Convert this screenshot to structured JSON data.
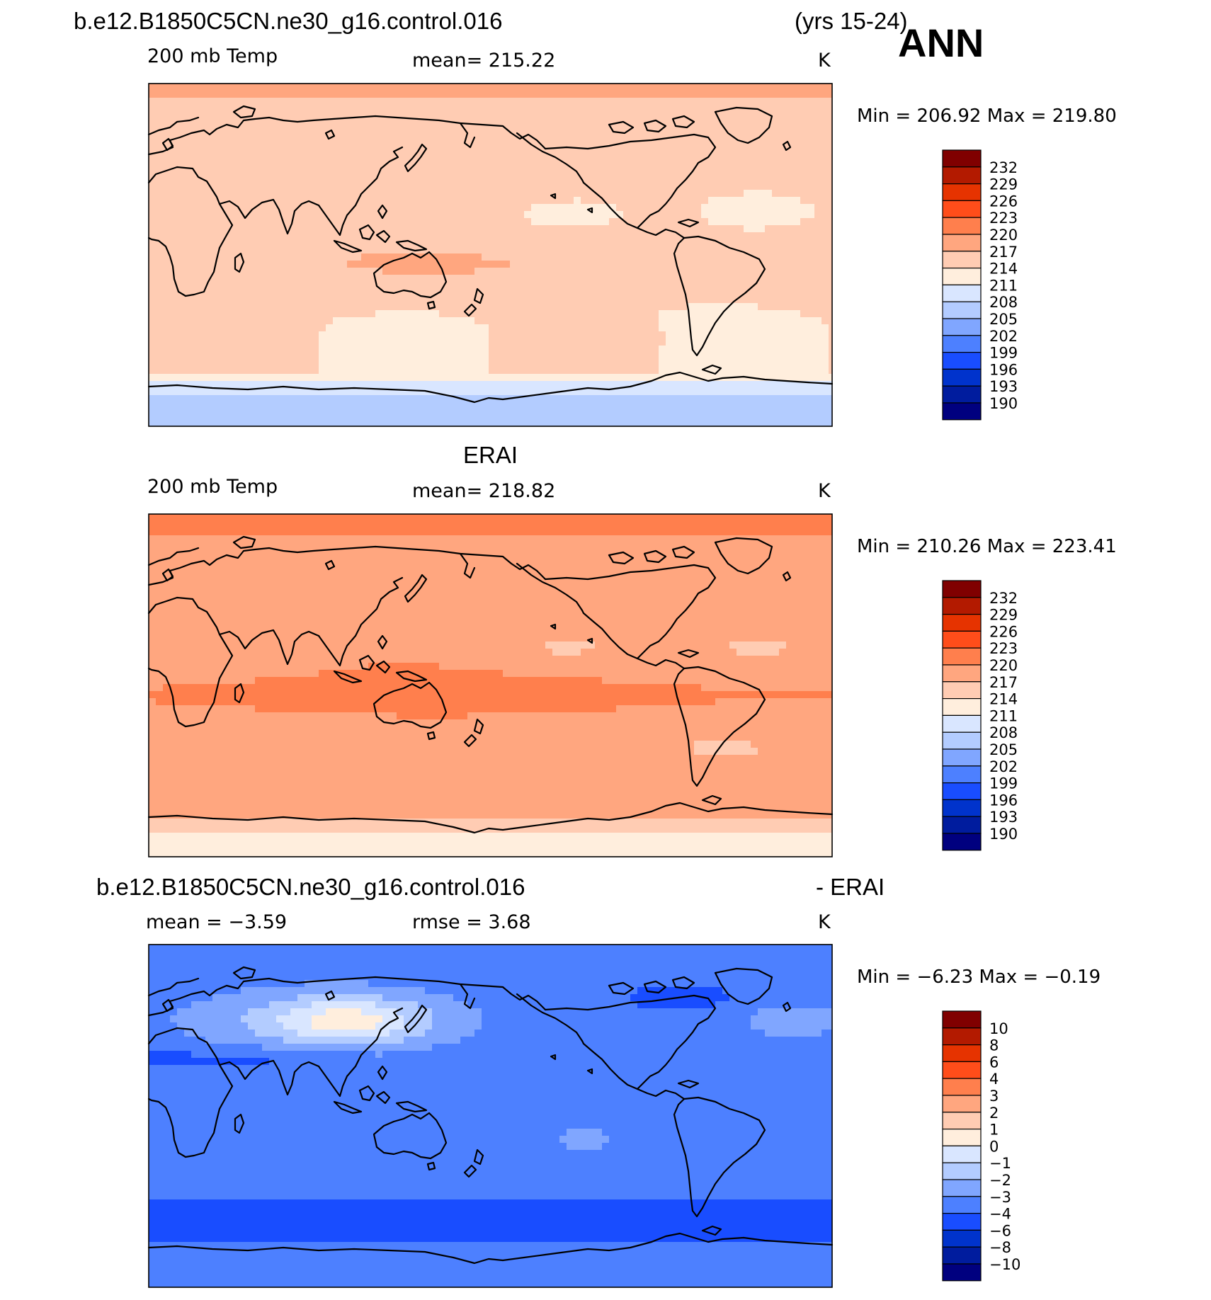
{
  "figure": {
    "case_name": "b.e12.B1850C5CN.ne30_g16.control.016",
    "years": "(yrs 15-24)",
    "season": "ANN"
  },
  "panels": [
    {
      "id": "model",
      "heading": "",
      "variable": "200 mb Temp",
      "stat_text": "mean=  215.22",
      "units": "K",
      "minmax": "Min  =  206.92  Max  =  219.80",
      "field": {
        "base": 214,
        "polar_n": 218,
        "south": 207,
        "south_lat": -62,
        "tropics": 216,
        "asia": 217,
        "eq_band_amp": 2,
        "pole_amp": 4
      },
      "colorbar": {
        "ticks": [
          "232",
          "229",
          "226",
          "223",
          "220",
          "217",
          "214",
          "211",
          "208",
          "205",
          "202",
          "199",
          "196",
          "193",
          "190"
        ]
      }
    },
    {
      "id": "obs",
      "heading": "ERAI",
      "variable": "200 mb Temp",
      "stat_text": "mean=  218.82",
      "units": "K",
      "minmax": "Min  =  210.26  Max  =  223.41",
      "field": {
        "base": 218,
        "polar_n": 221,
        "south": 212,
        "south_lat": -68,
        "tropics": 220,
        "asia": 220,
        "eq_band_amp": 2,
        "pole_amp": 3
      },
      "colorbar": {
        "ticks": [
          "232",
          "229",
          "226",
          "223",
          "220",
          "217",
          "214",
          "211",
          "208",
          "205",
          "202",
          "199",
          "196",
          "193",
          "190"
        ]
      }
    },
    {
      "id": "diff",
      "heading_left": "b.e12.B1850C5CN.ne30_g16.control.016",
      "heading_right": "- ERAI",
      "stat_left": "mean  =    −3.59",
      "stat_mid": "rmse  =      3.68",
      "units": "K",
      "minmax": "Min  =    −6.23  Max  =    −0.19",
      "colorbar": {
        "ticks": [
          "10",
          "8",
          "6",
          "4",
          "3",
          "2",
          "1",
          "0",
          "−1",
          "−2",
          "−3",
          "−4",
          "−6",
          "−8",
          "−10"
        ]
      }
    }
  ],
  "colors": {
    "abs_palette": [
      "#00007f",
      "#001c9e",
      "#0033cc",
      "#194dff",
      "#4d80ff",
      "#80a6ff",
      "#b3ccff",
      "#d9e6ff",
      "#ffeedd",
      "#ffccb3",
      "#ffa67f",
      "#ff7f4d",
      "#ff4d1a",
      "#e63300",
      "#b31a00",
      "#800000"
    ],
    "diff_palette": [
      "#00007f",
      "#001c9e",
      "#0033cc",
      "#194dff",
      "#4d80ff",
      "#80a6ff",
      "#b3ccff",
      "#d9e6ff",
      "#ffeedd",
      "#ffccb3",
      "#ffa67f",
      "#ff7f4d",
      "#ff4d1a",
      "#e63300",
      "#b31a00",
      "#800000"
    ]
  }
}
